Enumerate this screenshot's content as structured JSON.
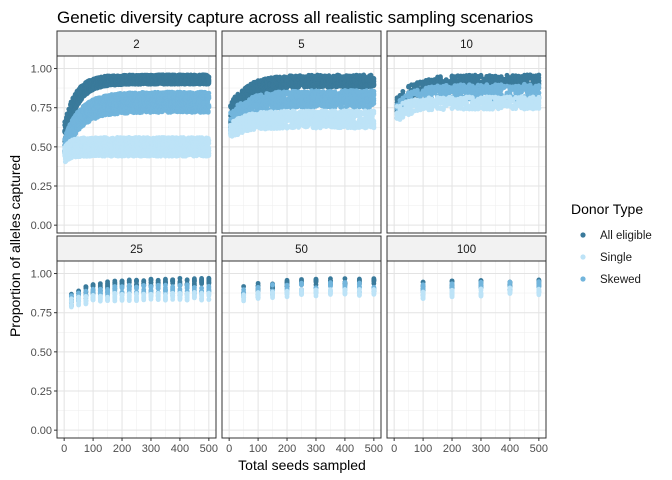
{
  "chart_data": {
    "type": "scatter",
    "title": "Genetic diversity capture across all realistic sampling scenarios",
    "xlabel": "Total seeds sampled",
    "ylabel": "Proportion of alleles captured",
    "xlim": [
      0,
      500
    ],
    "ylim": [
      0,
      1
    ],
    "x_ticks": [
      0,
      100,
      200,
      300,
      400,
      500
    ],
    "y_ticks": [
      0.0,
      0.25,
      0.5,
      0.75,
      1.0
    ],
    "y_tick_labels": [
      "0.00",
      "0.25",
      "0.50",
      "0.75",
      "1.00"
    ],
    "grid": true,
    "legend_position": "right",
    "legend_title": "Donor Type",
    "layout": "facet-grid 2 rows x 3 columns",
    "series": [
      {
        "name": "All eligible",
        "color": "#3a7a9b"
      },
      {
        "name": "Single",
        "color": "#bde3f7"
      },
      {
        "name": "Skewed",
        "color": "#72b5dc"
      }
    ],
    "panels": [
      {
        "label": "2",
        "x_step": 2,
        "ranges": {
          "All eligible": {
            "start": [
              0.48,
              0.66
            ],
            "end": [
              0.9,
              0.96
            ],
            "k": 40
          },
          "Single": {
            "start": [
              0.4,
              0.5
            ],
            "end": [
              0.44,
              0.56
            ],
            "k": 20
          },
          "Skewed": {
            "start": [
              0.45,
              0.56
            ],
            "end": [
              0.72,
              0.85
            ],
            "k": 55
          }
        }
      },
      {
        "label": "5",
        "x_step": 5,
        "ranges": {
          "All eligible": {
            "start": [
              0.62,
              0.78
            ],
            "end": [
              0.88,
              0.96
            ],
            "k": 60
          },
          "Single": {
            "start": [
              0.55,
              0.65
            ],
            "end": [
              0.62,
              0.73
            ],
            "k": 50
          },
          "Skewed": {
            "start": [
              0.58,
              0.72
            ],
            "end": [
              0.75,
              0.86
            ],
            "k": 60
          }
        }
      },
      {
        "label": "10",
        "x_step": 10,
        "ranges": {
          "All eligible": {
            "start": [
              0.7,
              0.82
            ],
            "end": [
              0.88,
              0.96
            ],
            "k": 60
          },
          "Single": {
            "start": [
              0.66,
              0.76
            ],
            "end": [
              0.74,
              0.82
            ],
            "k": 50
          },
          "Skewed": {
            "start": [
              0.68,
              0.79
            ],
            "end": [
              0.8,
              0.9
            ],
            "k": 60
          }
        }
      },
      {
        "label": "25",
        "x_step": 25,
        "ranges": {
          "All eligible": {
            "start": [
              0.8,
              0.88
            ],
            "end": [
              0.92,
              0.97
            ],
            "k": 80
          },
          "Single": {
            "start": [
              0.78,
              0.84
            ],
            "end": [
              0.83,
              0.88
            ],
            "k": 80
          },
          "Skewed": {
            "start": [
              0.79,
              0.86
            ],
            "end": [
              0.86,
              0.93
            ],
            "k": 80
          }
        }
      },
      {
        "label": "50",
        "x_step": 50,
        "ranges": {
          "All eligible": {
            "start": [
              0.85,
              0.92
            ],
            "end": [
              0.93,
              0.97
            ],
            "k": 100
          },
          "Single": {
            "start": [
              0.82,
              0.87
            ],
            "end": [
              0.86,
              0.9
            ],
            "k": 100
          },
          "Skewed": {
            "start": [
              0.83,
              0.9
            ],
            "end": [
              0.88,
              0.95
            ],
            "k": 100
          }
        }
      },
      {
        "label": "100",
        "x_step": 100,
        "ranges": {
          "All eligible": {
            "start": [
              0.88,
              0.95
            ],
            "end": [
              0.92,
              0.96
            ],
            "k": 150
          },
          "Single": {
            "start": [
              0.84,
              0.89
            ],
            "end": [
              0.86,
              0.91
            ],
            "k": 150
          },
          "Skewed": {
            "start": [
              0.85,
              0.93
            ],
            "end": [
              0.88,
              0.95
            ],
            "k": 150
          }
        }
      }
    ]
  }
}
